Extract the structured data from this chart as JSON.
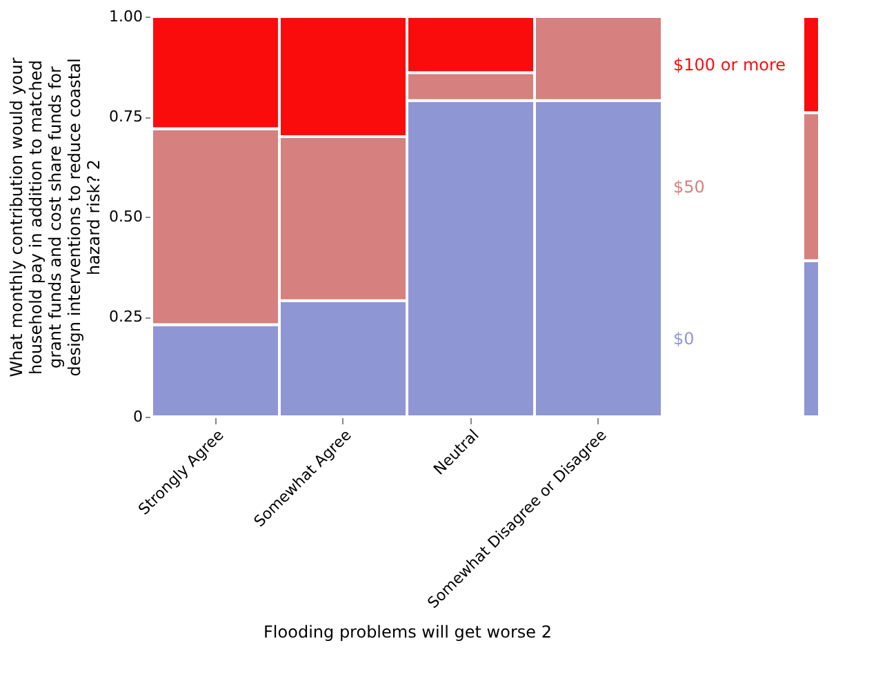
{
  "chart_data": [
    {
      "type": "bar",
      "stacked": true,
      "xlabel": "Flooding problems will get worse 2",
      "ylabel": "What monthly contribution would your household pay in addition to matched grant funds and cost share funds for design interventions to reduce coastal hazard risk? 2",
      "categories": [
        "Strongly Agree",
        "Somewhat Agree",
        "Neutral",
        "Somewhat Disagree or Disagree"
      ],
      "series": [
        {
          "name": "$0",
          "color": "#8f96d4",
          "values": [
            0.23,
            0.29,
            0.79,
            0.79
          ]
        },
        {
          "name": "$50",
          "color": "#d68080",
          "values": [
            0.49,
            0.41,
            0.07,
            0.21
          ]
        },
        {
          "name": "$100 or more",
          "color": "#fa0c0c",
          "values": [
            0.28,
            0.3,
            0.14,
            0
          ]
        }
      ],
      "ylim": [
        0,
        1
      ],
      "yticks": [
        0,
        {
          "value": 0.25,
          "label": "0.25"
        },
        {
          "value": 0.5,
          "label": "0.50"
        },
        {
          "value": 0.75,
          "label": "0.75"
        },
        {
          "value": 1,
          "label": "1.00"
        }
      ],
      "legend": "right"
    },
    {
      "type": "bar",
      "stacked": true,
      "categories": [
        null
      ],
      "series": [
        {
          "color": "#8f96d4",
          "values": [
            0.39
          ]
        },
        {
          "color": "#d68080",
          "values": [
            0.37
          ]
        },
        {
          "color": "#fa0c0c",
          "values": [
            0.24
          ]
        }
      ],
      "ylim": [
        0,
        1
      ],
      "tick_labels": false
    }
  ]
}
